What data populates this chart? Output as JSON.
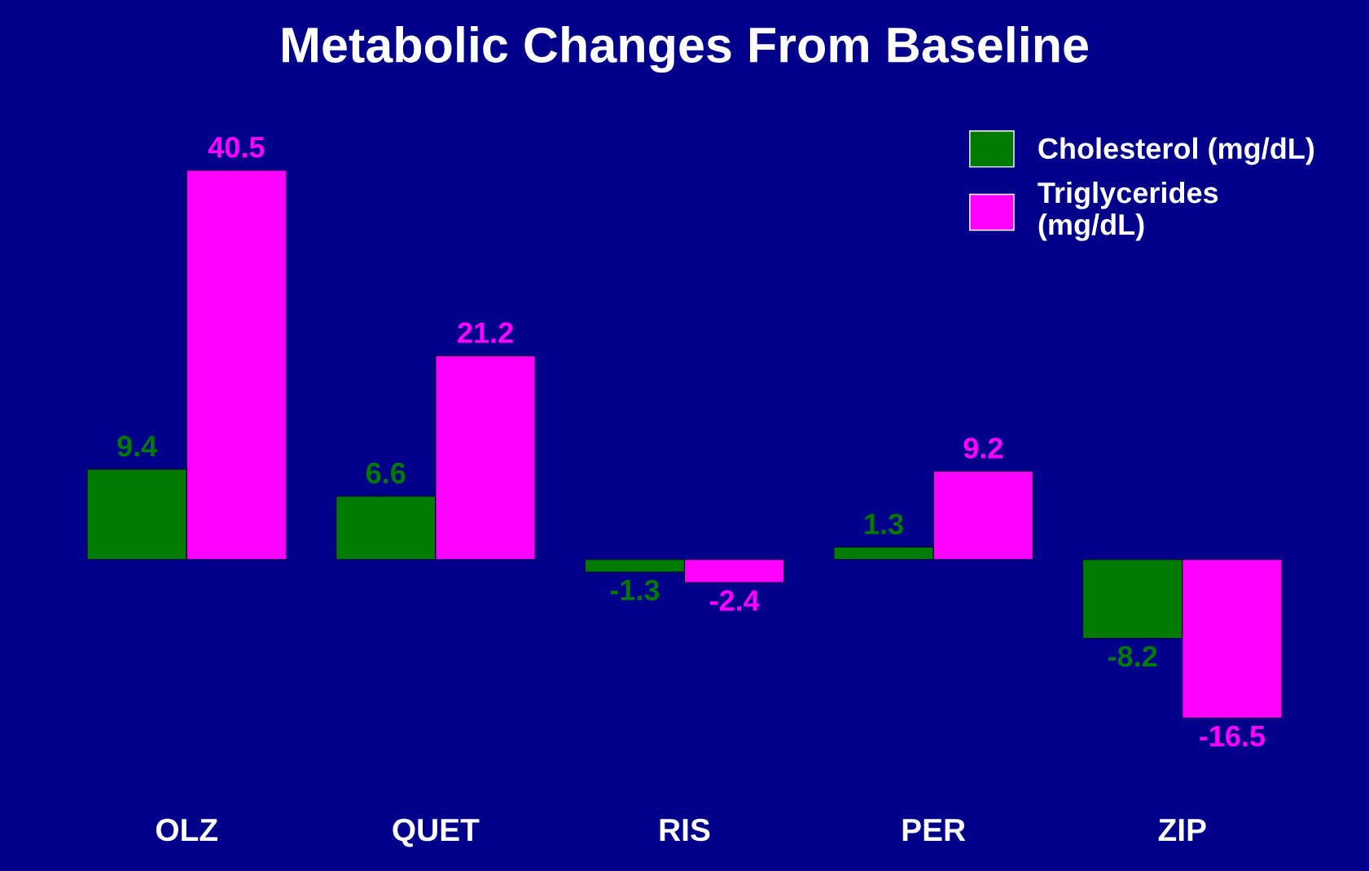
{
  "chart_data": {
    "type": "bar",
    "title": "Metabolic Changes From Baseline",
    "categories": [
      "OLZ",
      "QUET",
      "RIS",
      "PER",
      "ZIP"
    ],
    "series": [
      {
        "name": "Cholesterol (mg/dL)",
        "color": "#007a00",
        "values": [
          9.4,
          6.6,
          -1.3,
          1.3,
          -8.2
        ]
      },
      {
        "name": "Triglycerides\n(mg/dL)",
        "color": "#ff00ff",
        "values": [
          40.5,
          21.2,
          -2.4,
          9.2,
          -16.5
        ]
      }
    ],
    "data_labels": true,
    "legend": "top right",
    "grid": false
  }
}
